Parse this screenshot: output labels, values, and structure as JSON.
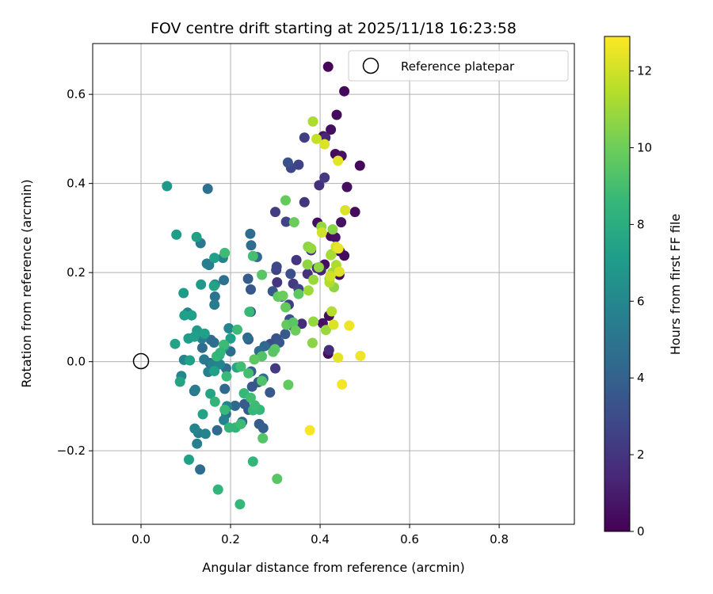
{
  "chart_data": {
    "type": "scatter",
    "title": "FOV centre drift starting at 2025/11/18 16:23:58",
    "xlabel": "Angular distance from reference (arcmin)",
    "ylabel": "Rotation from reference (arcmin)",
    "colorbar_label": "Hours from first FF file",
    "xlim": [
      -0.108,
      0.968
    ],
    "ylim": [
      -0.365,
      0.714
    ],
    "xticks": [
      0.0,
      0.2,
      0.4,
      0.6,
      0.8
    ],
    "xtick_labels": [
      "0.0",
      "0.2",
      "0.4",
      "0.6",
      "0.8"
    ],
    "yticks": [
      -0.2,
      0.0,
      0.2,
      0.4,
      0.6
    ],
    "ytick_labels": [
      "−0.2",
      "0.0",
      "0.2",
      "0.4",
      "0.6"
    ],
    "color_range": [
      0,
      12.9
    ],
    "colorbar_ticks": [
      0,
      2,
      4,
      6,
      8,
      10,
      12
    ],
    "colorbar_tick_labels": [
      "0",
      "2",
      "4",
      "6",
      "8",
      "10",
      "12"
    ],
    "colormap": [
      "#440154",
      "#482878",
      "#3e4989",
      "#31688e",
      "#26828e",
      "#1f9e89",
      "#35b779",
      "#6ece58",
      "#b5de2b",
      "#fde725"
    ],
    "grid": true,
    "legend": {
      "label": "Reference platepar",
      "placement": "top-right"
    },
    "reference_point": {
      "x": 0.0,
      "y": 0.0
    },
    "points": [
      [
        0.418,
        0.662,
        0.2
      ],
      [
        0.454,
        0.607,
        0.3
      ],
      [
        0.437,
        0.554,
        0.4
      ],
      [
        0.424,
        0.521,
        0.5
      ],
      [
        0.407,
        0.506,
        0.6
      ],
      [
        0.434,
        0.466,
        0.4
      ],
      [
        0.448,
        0.462,
        0.6
      ],
      [
        0.489,
        0.44,
        0.3
      ],
      [
        0.46,
        0.392,
        0.5
      ],
      [
        0.478,
        0.336,
        0.4
      ],
      [
        0.447,
        0.313,
        0.6
      ],
      [
        0.394,
        0.312,
        0.5
      ],
      [
        0.424,
        0.282,
        0.4
      ],
      [
        0.434,
        0.279,
        0.6
      ],
      [
        0.444,
        0.248,
        0.3
      ],
      [
        0.454,
        0.238,
        0.4
      ],
      [
        0.41,
        0.218,
        0.5
      ],
      [
        0.443,
        0.195,
        0.4
      ],
      [
        0.42,
        0.103,
        0.5
      ],
      [
        0.406,
        0.086,
        0.6
      ],
      [
        0.418,
        0.018,
        0.4
      ],
      [
        0.412,
        0.503,
        1.4
      ],
      [
        0.398,
        0.396,
        1.8
      ],
      [
        0.41,
        0.413,
        2.2
      ],
      [
        0.365,
        0.503,
        2.4
      ],
      [
        0.352,
        0.442,
        2.6
      ],
      [
        0.335,
        0.435,
        2.8
      ],
      [
        0.3,
        0.336,
        2.3
      ],
      [
        0.324,
        0.314,
        2.6
      ],
      [
        0.365,
        0.358,
        2.0
      ],
      [
        0.38,
        0.25,
        2.2
      ],
      [
        0.347,
        0.228,
        2.0
      ],
      [
        0.372,
        0.197,
        1.8
      ],
      [
        0.393,
        0.21,
        1.6
      ],
      [
        0.402,
        0.205,
        1.4
      ],
      [
        0.302,
        0.206,
        2.5
      ],
      [
        0.34,
        0.175,
        2.2
      ],
      [
        0.304,
        0.178,
        2.0
      ],
      [
        0.352,
        0.163,
        2.6
      ],
      [
        0.33,
        0.128,
        2.4
      ],
      [
        0.359,
        0.085,
        1.6
      ],
      [
        0.42,
        0.026,
        1.6
      ],
      [
        0.3,
        -0.015,
        2.2
      ],
      [
        0.303,
        0.213,
        2.8
      ],
      [
        0.328,
        0.447,
        3.3
      ],
      [
        0.334,
        0.197,
        3.2
      ],
      [
        0.239,
        0.186,
        3.7
      ],
      [
        0.294,
        0.158,
        3.5
      ],
      [
        0.245,
        0.112,
        3.4
      ],
      [
        0.314,
        0.146,
        3.2
      ],
      [
        0.332,
        0.095,
        3.3
      ],
      [
        0.34,
        0.079,
        3.5
      ],
      [
        0.322,
        0.062,
        3.6
      ],
      [
        0.302,
        0.052,
        3.3
      ],
      [
        0.289,
        0.04,
        3.2
      ],
      [
        0.309,
        0.043,
        3.4
      ],
      [
        0.24,
        0.05,
        3.8
      ],
      [
        0.246,
        -0.022,
        3.9
      ],
      [
        0.262,
        -0.046,
        3.7
      ],
      [
        0.248,
        -0.056,
        3.5
      ],
      [
        0.24,
        -0.108,
        3.6
      ],
      [
        0.231,
        -0.095,
        3.7
      ],
      [
        0.264,
        -0.14,
        3.8
      ],
      [
        0.273,
        -0.149,
        3.9
      ],
      [
        0.288,
        -0.069,
        3.6
      ],
      [
        0.245,
        0.162,
        3.5
      ],
      [
        0.244,
        0.287,
        4.6
      ],
      [
        0.246,
        0.261,
        4.5
      ],
      [
        0.259,
        0.235,
        4.4
      ],
      [
        0.276,
        0.035,
        4.3
      ],
      [
        0.264,
        0.024,
        4.5
      ],
      [
        0.238,
        0.054,
        4.6
      ],
      [
        0.2,
        0.023,
        4.6
      ],
      [
        0.19,
        -0.015,
        4.7
      ],
      [
        0.187,
        -0.061,
        4.4
      ],
      [
        0.21,
        -0.099,
        4.3
      ],
      [
        0.226,
        -0.135,
        4.2
      ],
      [
        0.17,
        -0.154,
        4.4
      ],
      [
        0.132,
        -0.242,
        4.6
      ],
      [
        0.149,
        0.388,
        4.8
      ],
      [
        0.185,
        0.183,
        4.8
      ],
      [
        0.165,
        0.146,
        4.9
      ],
      [
        0.163,
        0.043,
        4.7
      ],
      [
        0.137,
        0.031,
        4.5
      ],
      [
        0.119,
        -0.066,
        4.8
      ],
      [
        0.19,
        -0.117,
        4.9
      ],
      [
        0.154,
        -0.003,
        4.4
      ],
      [
        0.273,
        -0.038,
        4.5
      ],
      [
        0.156,
        0.049,
        4.6
      ],
      [
        0.147,
        0.22,
        5.6
      ],
      [
        0.152,
        0.217,
        5.5
      ],
      [
        0.133,
        0.266,
        5.3
      ],
      [
        0.183,
        0.233,
        5.8
      ],
      [
        0.164,
        0.128,
        5.4
      ],
      [
        0.104,
        0.11,
        5.6
      ],
      [
        0.165,
        0.173,
        5.7
      ],
      [
        0.136,
        0.052,
        5.5
      ],
      [
        0.127,
        0.064,
        5.8
      ],
      [
        0.141,
        0.005,
        5.3
      ],
      [
        0.16,
        -0.006,
        5.6
      ],
      [
        0.176,
        -0.006,
        5.9
      ],
      [
        0.15,
        -0.023,
        5.7
      ],
      [
        0.121,
        -0.063,
        5.4
      ],
      [
        0.128,
        -0.16,
        5.5
      ],
      [
        0.125,
        -0.184,
        5.6
      ],
      [
        0.144,
        -0.162,
        5.8
      ],
      [
        0.192,
        -0.1,
        5.8
      ],
      [
        0.185,
        -0.131,
        5.7
      ],
      [
        0.096,
        0.004,
        5.9
      ],
      [
        0.09,
        -0.032,
        6.0
      ],
      [
        0.12,
        -0.15,
        5.9
      ],
      [
        0.196,
        0.075,
        6.0
      ],
      [
        0.058,
        0.394,
        6.9
      ],
      [
        0.079,
        0.285,
        7.1
      ],
      [
        0.124,
        0.28,
        7.3
      ],
      [
        0.164,
        0.233,
        7.2
      ],
      [
        0.095,
        0.154,
        7.0
      ],
      [
        0.134,
        0.173,
        6.9
      ],
      [
        0.113,
        0.104,
        7.2
      ],
      [
        0.097,
        0.104,
        7.2
      ],
      [
        0.125,
        0.07,
        7.0
      ],
      [
        0.142,
        0.063,
        7.3
      ],
      [
        0.076,
        0.04,
        7.4
      ],
      [
        0.106,
        0.052,
        7.1
      ],
      [
        0.109,
        0.003,
        7.2
      ],
      [
        0.107,
        -0.22,
        7.3
      ],
      [
        0.087,
        -0.045,
        7.5
      ],
      [
        0.2,
        0.052,
        7.2
      ],
      [
        0.186,
        0.035,
        7.3
      ],
      [
        0.163,
        0.17,
        7.4
      ],
      [
        0.214,
        -0.013,
        7.6
      ],
      [
        0.138,
        -0.118,
        7.4
      ],
      [
        0.155,
        -0.072,
        7.5
      ],
      [
        0.119,
        0.056,
        7.2
      ],
      [
        0.164,
        -0.021,
        7.3
      ],
      [
        0.175,
        0.015,
        7.6
      ],
      [
        0.172,
        -0.287,
        8.4
      ],
      [
        0.221,
        -0.32,
        8.6
      ],
      [
        0.197,
        -0.148,
        8.4
      ],
      [
        0.25,
        -0.224,
        8.5
      ],
      [
        0.165,
        -0.09,
        8.5
      ],
      [
        0.187,
        -0.108,
        8.7
      ],
      [
        0.211,
        -0.148,
        8.5
      ],
      [
        0.223,
        -0.14,
        8.8
      ],
      [
        0.25,
        -0.109,
        8.6
      ],
      [
        0.265,
        -0.108,
        8.6
      ],
      [
        0.254,
        -0.098,
        8.8
      ],
      [
        0.23,
        -0.071,
        8.6
      ],
      [
        0.245,
        -0.081,
        8.9
      ],
      [
        0.215,
        0.072,
        8.8
      ],
      [
        0.242,
        0.112,
        8.7
      ],
      [
        0.187,
        0.244,
        8.8
      ],
      [
        0.25,
        0.237,
        9.0
      ],
      [
        0.185,
        0.038,
        8.8
      ],
      [
        0.169,
        0.012,
        8.6
      ],
      [
        0.177,
        0.02,
        8.4
      ],
      [
        0.191,
        -0.033,
        8.7
      ],
      [
        0.223,
        -0.011,
        8.9
      ],
      [
        0.24,
        -0.026,
        9.0
      ],
      [
        0.27,
        -0.043,
        9.3
      ],
      [
        0.272,
        -0.172,
        9.4
      ],
      [
        0.304,
        -0.263,
        9.5
      ],
      [
        0.299,
        0.028,
        9.6
      ],
      [
        0.27,
        0.012,
        9.3
      ],
      [
        0.295,
        0.022,
        9.5
      ],
      [
        0.329,
        -0.052,
        9.7
      ],
      [
        0.27,
        0.195,
        9.5
      ],
      [
        0.306,
        0.146,
        9.7
      ],
      [
        0.323,
        0.122,
        9.8
      ],
      [
        0.317,
        0.148,
        9.9
      ],
      [
        0.352,
        0.152,
        9.6
      ],
      [
        0.325,
        0.083,
        9.8
      ],
      [
        0.34,
        0.088,
        9.5
      ],
      [
        0.345,
        0.07,
        9.9
      ],
      [
        0.323,
        0.362,
        9.8
      ],
      [
        0.342,
        0.313,
        9.9
      ],
      [
        0.253,
        0.005,
        9.6
      ],
      [
        0.373,
        0.258,
        10.6
      ],
      [
        0.38,
        0.254,
        10.8
      ],
      [
        0.372,
        0.218,
        10.7
      ],
      [
        0.385,
        0.184,
        10.9
      ],
      [
        0.397,
        0.212,
        10.7
      ],
      [
        0.403,
        0.303,
        10.8
      ],
      [
        0.428,
        0.297,
        10.5
      ],
      [
        0.425,
        0.241,
        10.6
      ],
      [
        0.431,
        0.167,
        10.7
      ],
      [
        0.421,
        0.186,
        10.9
      ],
      [
        0.385,
        0.09,
        10.8
      ],
      [
        0.383,
        0.042,
        10.6
      ],
      [
        0.413,
        0.071,
        10.9
      ],
      [
        0.384,
        0.539,
        11.3
      ],
      [
        0.424,
        0.239,
        11.2
      ],
      [
        0.436,
        0.217,
        11.3
      ],
      [
        0.427,
        0.2,
        11.1
      ],
      [
        0.421,
        0.178,
        11.4
      ],
      [
        0.374,
        0.16,
        11.0
      ],
      [
        0.426,
        0.113,
        11.5
      ],
      [
        0.392,
        0.5,
        11.8
      ],
      [
        0.41,
        0.488,
        12.2
      ],
      [
        0.44,
        0.451,
        12.4
      ],
      [
        0.456,
        0.34,
        12.2
      ],
      [
        0.404,
        0.29,
        12.0
      ],
      [
        0.435,
        0.258,
        12.1
      ],
      [
        0.441,
        0.254,
        12.5
      ],
      [
        0.443,
        0.202,
        12.3
      ],
      [
        0.465,
        0.081,
        12.6
      ],
      [
        0.43,
        0.083,
        12.2
      ],
      [
        0.44,
        0.009,
        12.4
      ],
      [
        0.49,
        0.013,
        12.6
      ],
      [
        0.449,
        -0.051,
        12.7
      ],
      [
        0.377,
        -0.154,
        12.8
      ],
      [
        0.423,
        0.192,
        12.0
      ]
    ]
  }
}
